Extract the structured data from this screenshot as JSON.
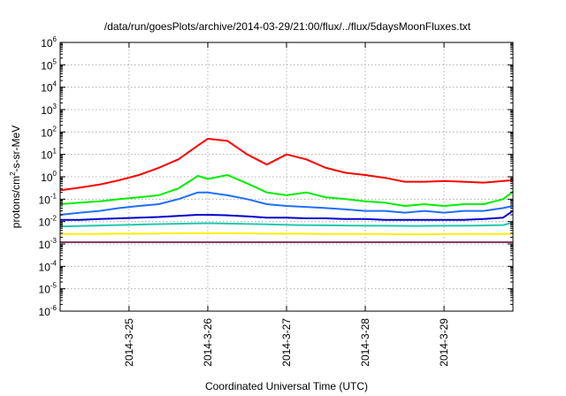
{
  "chart_data": {
    "type": "line",
    "title": "/data/run/goesPlots/archive/2014-03-29/21:00/flux/../flux/5daysMoonFluxes.txt",
    "xlabel": "Coordinated Universal Time (UTC)",
    "ylabel": {
      "base": "protons/cm",
      "sup": "2",
      "rest": "-s-sr-MeV"
    },
    "y_scale": "log",
    "ylim": [
      1e-06,
      1000000.0
    ],
    "y_ticks": [
      {
        "value": 1e-06,
        "base": "10",
        "exp": "-6"
      },
      {
        "value": 1e-05,
        "base": "10",
        "exp": "-5"
      },
      {
        "value": 0.0001,
        "base": "10",
        "exp": "-4"
      },
      {
        "value": 0.001,
        "base": "10",
        "exp": "-3"
      },
      {
        "value": 0.01,
        "base": "10",
        "exp": "-2"
      },
      {
        "value": 0.1,
        "base": "10",
        "exp": "-1"
      },
      {
        "value": 1,
        "base": "10",
        "exp": "0"
      },
      {
        "value": 10.0,
        "base": "10",
        "exp": "1"
      },
      {
        "value": 100.0,
        "base": "10",
        "exp": "2"
      },
      {
        "value": 1000.0,
        "base": "10",
        "exp": "3"
      },
      {
        "value": 10000.0,
        "base": "10",
        "exp": "4"
      },
      {
        "value": 100000.0,
        "base": "10",
        "exp": "5"
      },
      {
        "value": 1000000.0,
        "base": "10",
        "exp": "6"
      }
    ],
    "x_axis": "date",
    "xlim": [
      "2014-03-24T03:00",
      "2014-03-29T21:00"
    ],
    "x_ticks": [
      {
        "date": "2014-03-25T00:00",
        "label": "2014-3-25"
      },
      {
        "date": "2014-03-26T00:00",
        "label": "2014-3-26"
      },
      {
        "date": "2014-03-27T00:00",
        "label": "2014-3-27"
      },
      {
        "date": "2014-03-28T00:00",
        "label": "2014-3-28"
      },
      {
        "date": "2014-03-29T00:00",
        "label": "2014-3-29"
      }
    ],
    "grid": true,
    "legend": "none",
    "series": [
      {
        "color": "#ff0000",
        "points": [
          [
            "2014-03-24T03:00",
            0.25
          ],
          [
            "2014-03-24T09:00",
            0.33
          ],
          [
            "2014-03-24T15:00",
            0.45
          ],
          [
            "2014-03-24T21:00",
            0.7
          ],
          [
            "2014-03-25T03:00",
            1.2
          ],
          [
            "2014-03-25T09:00",
            2.5
          ],
          [
            "2014-03-25T15:00",
            6
          ],
          [
            "2014-03-25T21:00",
            25
          ],
          [
            "2014-03-26T00:00",
            50
          ],
          [
            "2014-03-26T06:00",
            40
          ],
          [
            "2014-03-26T12:00",
            10
          ],
          [
            "2014-03-26T18:00",
            3.5
          ],
          [
            "2014-03-27T00:00",
            10
          ],
          [
            "2014-03-27T06:00",
            6
          ],
          [
            "2014-03-27T12:00",
            2.5
          ],
          [
            "2014-03-27T18:00",
            1.5
          ],
          [
            "2014-03-28T00:00",
            1.2
          ],
          [
            "2014-03-28T06:00",
            0.9
          ],
          [
            "2014-03-28T12:00",
            0.6
          ],
          [
            "2014-03-28T18:00",
            0.6
          ],
          [
            "2014-03-29T00:00",
            0.65
          ],
          [
            "2014-03-29T06:00",
            0.6
          ],
          [
            "2014-03-29T12:00",
            0.55
          ],
          [
            "2014-03-29T18:00",
            0.65
          ],
          [
            "2014-03-29T21:00",
            0.7
          ]
        ]
      },
      {
        "color": "#00ee00",
        "points": [
          [
            "2014-03-24T03:00",
            0.06
          ],
          [
            "2014-03-24T09:00",
            0.07
          ],
          [
            "2014-03-24T15:00",
            0.08
          ],
          [
            "2014-03-24T21:00",
            0.1
          ],
          [
            "2014-03-25T03:00",
            0.12
          ],
          [
            "2014-03-25T09:00",
            0.15
          ],
          [
            "2014-03-25T15:00",
            0.3
          ],
          [
            "2014-03-25T21:00",
            1.1
          ],
          [
            "2014-03-26T00:00",
            0.8
          ],
          [
            "2014-03-26T06:00",
            1.2
          ],
          [
            "2014-03-26T12:00",
            0.5
          ],
          [
            "2014-03-26T18:00",
            0.2
          ],
          [
            "2014-03-27T00:00",
            0.15
          ],
          [
            "2014-03-27T06:00",
            0.2
          ],
          [
            "2014-03-27T12:00",
            0.12
          ],
          [
            "2014-03-27T18:00",
            0.1
          ],
          [
            "2014-03-28T00:00",
            0.08
          ],
          [
            "2014-03-28T06:00",
            0.07
          ],
          [
            "2014-03-28T12:00",
            0.05
          ],
          [
            "2014-03-28T18:00",
            0.06
          ],
          [
            "2014-03-29T00:00",
            0.05
          ],
          [
            "2014-03-29T06:00",
            0.06
          ],
          [
            "2014-03-29T12:00",
            0.06
          ],
          [
            "2014-03-29T18:00",
            0.1
          ],
          [
            "2014-03-29T21:00",
            0.22
          ]
        ]
      },
      {
        "color": "#1e6fff",
        "points": [
          [
            "2014-03-24T03:00",
            0.02
          ],
          [
            "2014-03-24T09:00",
            0.025
          ],
          [
            "2014-03-24T15:00",
            0.03
          ],
          [
            "2014-03-24T21:00",
            0.04
          ],
          [
            "2014-03-25T03:00",
            0.05
          ],
          [
            "2014-03-25T09:00",
            0.06
          ],
          [
            "2014-03-25T15:00",
            0.1
          ],
          [
            "2014-03-25T21:00",
            0.2
          ],
          [
            "2014-03-26T00:00",
            0.2
          ],
          [
            "2014-03-26T06:00",
            0.15
          ],
          [
            "2014-03-26T12:00",
            0.1
          ],
          [
            "2014-03-26T18:00",
            0.06
          ],
          [
            "2014-03-27T00:00",
            0.05
          ],
          [
            "2014-03-27T06:00",
            0.045
          ],
          [
            "2014-03-27T12:00",
            0.04
          ],
          [
            "2014-03-27T18:00",
            0.035
          ],
          [
            "2014-03-28T00:00",
            0.03
          ],
          [
            "2014-03-28T06:00",
            0.03
          ],
          [
            "2014-03-28T12:00",
            0.025
          ],
          [
            "2014-03-28T18:00",
            0.03
          ],
          [
            "2014-03-29T00:00",
            0.025
          ],
          [
            "2014-03-29T06:00",
            0.03
          ],
          [
            "2014-03-29T12:00",
            0.03
          ],
          [
            "2014-03-29T18:00",
            0.04
          ],
          [
            "2014-03-29T21:00",
            0.05
          ]
        ]
      },
      {
        "color": "#0000cc",
        "points": [
          [
            "2014-03-24T03:00",
            0.012
          ],
          [
            "2014-03-24T09:00",
            0.012
          ],
          [
            "2014-03-24T15:00",
            0.013
          ],
          [
            "2014-03-24T21:00",
            0.014
          ],
          [
            "2014-03-25T03:00",
            0.015
          ],
          [
            "2014-03-25T09:00",
            0.016
          ],
          [
            "2014-03-25T15:00",
            0.018
          ],
          [
            "2014-03-25T21:00",
            0.02
          ],
          [
            "2014-03-26T00:00",
            0.02
          ],
          [
            "2014-03-26T06:00",
            0.019
          ],
          [
            "2014-03-26T12:00",
            0.017
          ],
          [
            "2014-03-26T18:00",
            0.015
          ],
          [
            "2014-03-27T00:00",
            0.015
          ],
          [
            "2014-03-27T06:00",
            0.014
          ],
          [
            "2014-03-27T12:00",
            0.014
          ],
          [
            "2014-03-27T18:00",
            0.013
          ],
          [
            "2014-03-28T00:00",
            0.013
          ],
          [
            "2014-03-28T06:00",
            0.012
          ],
          [
            "2014-03-28T12:00",
            0.012
          ],
          [
            "2014-03-28T18:00",
            0.012
          ],
          [
            "2014-03-29T00:00",
            0.012
          ],
          [
            "2014-03-29T06:00",
            0.012
          ],
          [
            "2014-03-29T12:00",
            0.013
          ],
          [
            "2014-03-29T18:00",
            0.015
          ],
          [
            "2014-03-29T21:00",
            0.03
          ]
        ]
      },
      {
        "color": "#20c8b0",
        "points": [
          [
            "2014-03-24T03:00",
            0.006
          ],
          [
            "2014-03-24T12:00",
            0.0065
          ],
          [
            "2014-03-24T21:00",
            0.007
          ],
          [
            "2014-03-25T06:00",
            0.0075
          ],
          [
            "2014-03-25T15:00",
            0.008
          ],
          [
            "2014-03-26T00:00",
            0.0085
          ],
          [
            "2014-03-26T09:00",
            0.008
          ],
          [
            "2014-03-26T18:00",
            0.0075
          ],
          [
            "2014-03-27T03:00",
            0.007
          ],
          [
            "2014-03-27T12:00",
            0.0068
          ],
          [
            "2014-03-27T21:00",
            0.0066
          ],
          [
            "2014-03-28T06:00",
            0.0065
          ],
          [
            "2014-03-28T15:00",
            0.0064
          ],
          [
            "2014-03-29T00:00",
            0.0065
          ],
          [
            "2014-03-29T09:00",
            0.0066
          ],
          [
            "2014-03-29T18:00",
            0.007
          ],
          [
            "2014-03-29T21:00",
            0.009
          ]
        ]
      },
      {
        "color": "#ffee00",
        "points": [
          [
            "2014-03-24T03:00",
            0.0028
          ],
          [
            "2014-03-24T12:00",
            0.0028
          ],
          [
            "2014-03-24T21:00",
            0.0029
          ],
          [
            "2014-03-25T06:00",
            0.0029
          ],
          [
            "2014-03-25T15:00",
            0.003
          ],
          [
            "2014-03-26T00:00",
            0.003
          ],
          [
            "2014-03-26T09:00",
            0.003
          ],
          [
            "2014-03-26T18:00",
            0.0029
          ],
          [
            "2014-03-27T03:00",
            0.0029
          ],
          [
            "2014-03-27T12:00",
            0.0028
          ],
          [
            "2014-03-27T21:00",
            0.0028
          ],
          [
            "2014-03-28T06:00",
            0.0028
          ],
          [
            "2014-03-28T15:00",
            0.0027
          ],
          [
            "2014-03-29T00:00",
            0.0028
          ],
          [
            "2014-03-29T09:00",
            0.0028
          ],
          [
            "2014-03-29T18:00",
            0.0028
          ],
          [
            "2014-03-29T21:00",
            0.0029
          ]
        ]
      },
      {
        "color": "#8b3a6a",
        "points": [
          [
            "2014-03-24T03:00",
            0.0012
          ],
          [
            "2014-03-24T12:00",
            0.0012
          ],
          [
            "2014-03-24T21:00",
            0.0012
          ],
          [
            "2014-03-25T06:00",
            0.0012
          ],
          [
            "2014-03-25T15:00",
            0.0012
          ],
          [
            "2014-03-26T00:00",
            0.0012
          ],
          [
            "2014-03-26T09:00",
            0.0012
          ],
          [
            "2014-03-26T18:00",
            0.0012
          ],
          [
            "2014-03-27T03:00",
            0.0012
          ],
          [
            "2014-03-27T12:00",
            0.0012
          ],
          [
            "2014-03-27T21:00",
            0.0012
          ],
          [
            "2014-03-28T06:00",
            0.0012
          ],
          [
            "2014-03-28T15:00",
            0.0012
          ],
          [
            "2014-03-29T00:00",
            0.0012
          ],
          [
            "2014-03-29T09:00",
            0.0012
          ],
          [
            "2014-03-29T18:00",
            0.0012
          ],
          [
            "2014-03-29T21:00",
            0.0012
          ]
        ]
      }
    ]
  }
}
